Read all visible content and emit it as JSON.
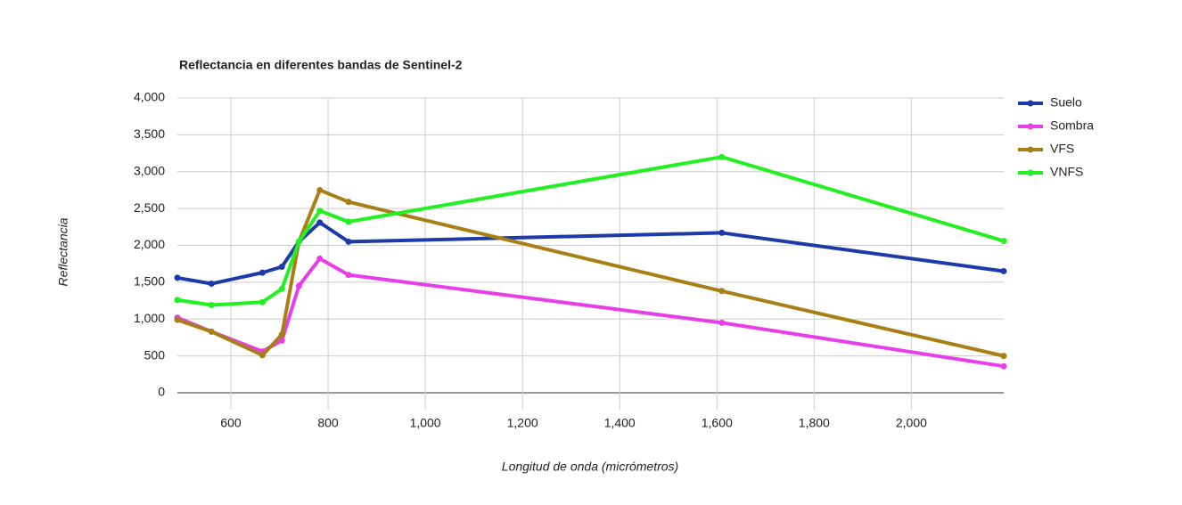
{
  "chart_data": {
    "type": "line",
    "title": "Reflectancia en diferentes bandas de Sentinel-2",
    "x_label": "Longitud de onda (micrómetros)",
    "y_label": "Reflectancia",
    "x": [
      490,
      560,
      665,
      705,
      740,
      783,
      842,
      1610,
      2190
    ],
    "series": [
      {
        "name": "Suelo",
        "color": "#1c3aa9",
        "values": [
          1560,
          1480,
          1630,
          1710,
          2050,
          2310,
          2050,
          2170,
          1650
        ]
      },
      {
        "name": "Sombra",
        "color": "#e83ee8",
        "values": [
          1020,
          830,
          560,
          710,
          1450,
          1820,
          1600,
          950,
          360
        ]
      },
      {
        "name": "VFS",
        "color": "#a87f14",
        "values": [
          990,
          830,
          510,
          790,
          2050,
          2750,
          2590,
          1380,
          500
        ]
      },
      {
        "name": "VNFS",
        "color": "#22f022",
        "values": [
          1260,
          1190,
          1230,
          1410,
          2050,
          2470,
          2320,
          3200,
          2060
        ]
      }
    ],
    "xlim": [
      490,
      2190
    ],
    "xticks": [
      600,
      800,
      {
        "value": 1000,
        "label": "1,000"
      },
      {
        "value": 1200,
        "label": "1,200"
      },
      {
        "value": 1400,
        "label": "1,400"
      },
      {
        "value": 1600,
        "label": "1,600"
      },
      {
        "value": 1800,
        "label": "1,800"
      },
      {
        "value": 2000,
        "label": "2,000"
      }
    ],
    "ylim": [
      0,
      4000
    ],
    "yticks": [
      0,
      500,
      {
        "value": 1000,
        "label": "1,000"
      },
      {
        "value": 1500,
        "label": "1,500"
      },
      {
        "value": 2000,
        "label": "2,000"
      },
      {
        "value": 2500,
        "label": "2,500"
      },
      {
        "value": 3000,
        "label": "3,000"
      },
      {
        "value": 3500,
        "label": "3,500"
      },
      {
        "value": 4000,
        "label": "4,000"
      }
    ],
    "grid": true,
    "legend": "right"
  }
}
